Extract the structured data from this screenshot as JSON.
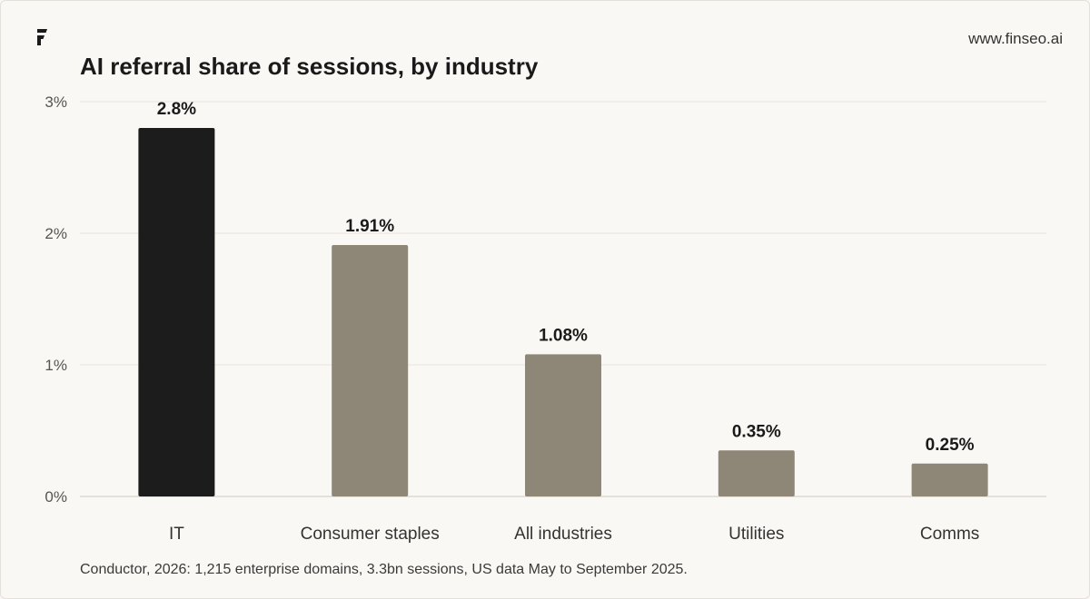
{
  "header": {
    "site": "www.finseo.ai",
    "title": "AI referral share of sessions, by industry"
  },
  "footer": {
    "source": "Conductor, 2026: 1,215 enterprise domains, 3.3bn sessions, US data May to September 2025."
  },
  "colors": {
    "highlight": "#1c1c1c",
    "bar": "#8e8778",
    "grid": "#e8e5df",
    "background": "#faf8f4"
  },
  "chart_data": {
    "type": "bar",
    "categories": [
      "IT",
      "Consumer staples",
      "All industries",
      "Utilities",
      "Comms"
    ],
    "values": [
      2.8,
      1.91,
      1.08,
      0.35,
      0.25
    ],
    "value_labels": [
      "2.8%",
      "1.91%",
      "1.08%",
      "0.35%",
      "0.25%"
    ],
    "highlight_index": 0,
    "ylim": [
      0,
      3
    ],
    "yticks": [
      0,
      1,
      2,
      3
    ],
    "ytick_labels": [
      "0%",
      "1%",
      "2%",
      "3%"
    ],
    "grid": true
  }
}
